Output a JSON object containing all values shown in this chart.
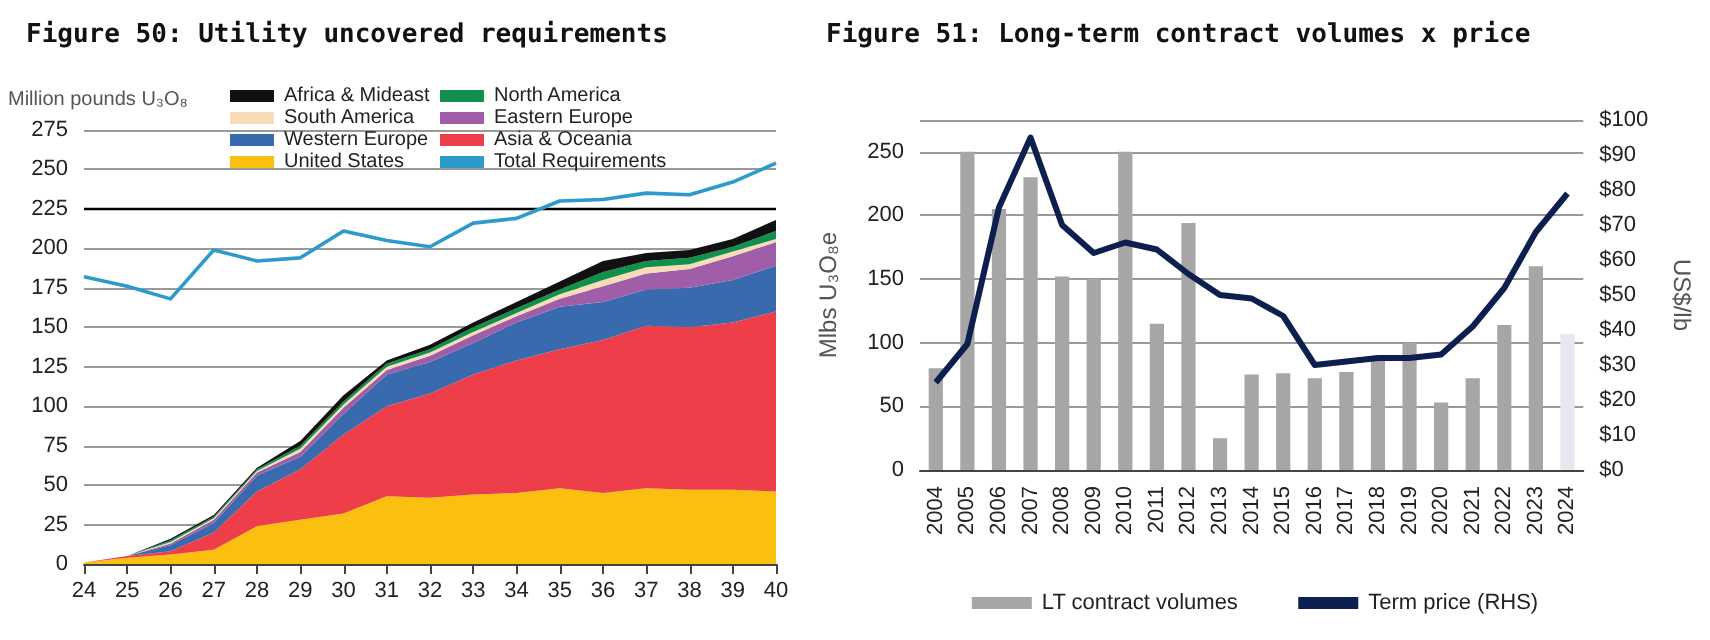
{
  "chart_data": [
    {
      "type": "area",
      "title": "Figure 50: Utility uncovered requirements",
      "ylabel": "Million pounds U₃O₈",
      "categories": [
        "24",
        "25",
        "26",
        "27",
        "28",
        "29",
        "30",
        "31",
        "32",
        "33",
        "34",
        "35",
        "36",
        "37",
        "38",
        "39",
        "40"
      ],
      "stacked": true,
      "ylim": [
        0,
        275
      ],
      "yticks": [
        0,
        25,
        50,
        75,
        100,
        125,
        150,
        175,
        200,
        225,
        250,
        275
      ],
      "grid": "y",
      "legend": "top",
      "marker": "none",
      "ref_lines": [
        {
          "axis": "y",
          "value": 225,
          "color": "#000000"
        }
      ],
      "series": [
        {
          "name": "United States",
          "color": "#fbbf10",
          "values": [
            1,
            4,
            6,
            9,
            24,
            28,
            32,
            43,
            42,
            44,
            45,
            48,
            45,
            48,
            47,
            47,
            46
          ]
        },
        {
          "name": "Asia & Oceania",
          "color": "#ee3e4a",
          "values": [
            0,
            1,
            2,
            11,
            22,
            32,
            50,
            57,
            66,
            76,
            84,
            88,
            97,
            103,
            103,
            106,
            114
          ]
        },
        {
          "name": "Western Europe",
          "color": "#3a6aae",
          "values": [
            0,
            0,
            4,
            6,
            10,
            8,
            13,
            20,
            20,
            20,
            24,
            27,
            24,
            23,
            25,
            27,
            29
          ]
        },
        {
          "name": "Eastern Europe",
          "color": "#a05ea8",
          "values": [
            0,
            0,
            1,
            2,
            2,
            3,
            4,
            3,
            4,
            5,
            4,
            5,
            10,
            10,
            12,
            15,
            15
          ]
        },
        {
          "name": "South America",
          "color": "#f8dcb8",
          "values": [
            0,
            0,
            1,
            1,
            1,
            2,
            2,
            2,
            2,
            2,
            2,
            3,
            4,
            4,
            3,
            3,
            2
          ]
        },
        {
          "name": "North America",
          "color": "#10904a",
          "values": [
            0,
            0,
            1,
            1,
            1,
            2,
            2,
            2,
            2,
            3,
            3,
            3,
            5,
            4,
            4,
            3,
            5
          ]
        },
        {
          "name": "Africa & Mideast",
          "color": "#111111",
          "values": [
            0,
            0,
            1,
            1,
            1,
            3,
            4,
            2,
            3,
            3,
            4,
            5,
            7,
            5,
            5,
            5,
            7
          ]
        },
        {
          "name": "Total Requirements",
          "type": "line",
          "color": "#2c9bcc",
          "values": [
            182,
            176,
            168,
            199,
            192,
            194,
            211,
            205,
            201,
            216,
            219,
            230,
            231,
            235,
            234,
            242,
            254
          ]
        }
      ]
    },
    {
      "type": "bar",
      "title": "Figure 51: Long-term contract volumes x price",
      "ylabel": "Mlbs U₃O₈e",
      "y2label": "US$/lb",
      "categories": [
        "2004",
        "2005",
        "2006",
        "2007",
        "2008",
        "2009",
        "2010",
        "2011",
        "2012",
        "2013",
        "2014",
        "2015",
        "2016",
        "2017",
        "2018",
        "2019",
        "2020",
        "2021",
        "2022",
        "2023",
        "2024"
      ],
      "ylim": [
        0,
        275
      ],
      "yticks": [
        0,
        50,
        100,
        150,
        200,
        250
      ],
      "y2lim": [
        0,
        100
      ],
      "y2ticks": [
        {
          "value": 0,
          "label": "$0"
        },
        {
          "value": 10,
          "label": "$10"
        },
        {
          "value": 20,
          "label": "$20"
        },
        {
          "value": 30,
          "label": "$30"
        },
        {
          "value": 40,
          "label": "$40"
        },
        {
          "value": 50,
          "label": "$50"
        },
        {
          "value": 60,
          "label": "$60"
        },
        {
          "value": 70,
          "label": "$70"
        },
        {
          "value": 80,
          "label": "$80"
        },
        {
          "value": 90,
          "label": "$90"
        },
        {
          "value": 100,
          "label": "$100"
        }
      ],
      "grid": "y",
      "legend": "bottom",
      "marker": "none",
      "series": [
        {
          "name": "LT contract volumes",
          "color": "#a6a6a6",
          "colors": [
            "#a6a6a6",
            "#a6a6a6",
            "#a6a6a6",
            "#a6a6a6",
            "#a6a6a6",
            "#a6a6a6",
            "#a6a6a6",
            "#a6a6a6",
            "#a6a6a6",
            "#a6a6a6",
            "#a6a6a6",
            "#a6a6a6",
            "#a6a6a6",
            "#a6a6a6",
            "#a6a6a6",
            "#a6a6a6",
            "#a6a6a6",
            "#a6a6a6",
            "#a6a6a6",
            "#a6a6a6",
            "#e6e9f2"
          ],
          "values": [
            80,
            250,
            205,
            230,
            152,
            150,
            250,
            115,
            194,
            25,
            75,
            76,
            72,
            77,
            88,
            100,
            53,
            72,
            114,
            160,
            107
          ]
        },
        {
          "name": "Term price (RHS)",
          "type": "line",
          "axis": "y2",
          "color": "#0d1f4f",
          "values": [
            25,
            36,
            75,
            95,
            70,
            62,
            65,
            63,
            56,
            50,
            49,
            44,
            30,
            31,
            32,
            32,
            33,
            41,
            52,
            68,
            79
          ]
        }
      ]
    }
  ]
}
